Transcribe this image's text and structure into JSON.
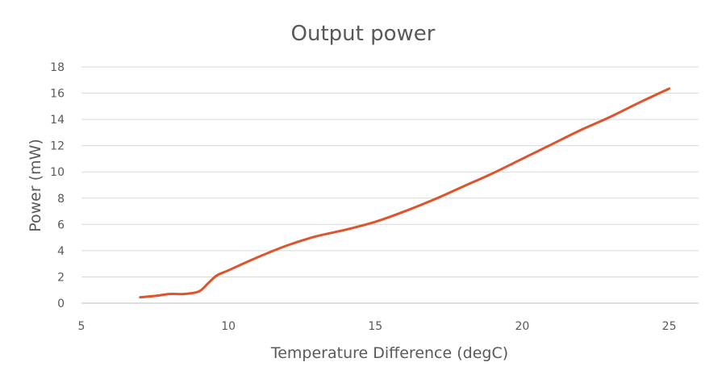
{
  "chart_data": {
    "type": "line",
    "title": "Output power",
    "xlabel": "Temperature Difference (degC)",
    "ylabel": "Power (mW)",
    "xlim": [
      5,
      26
    ],
    "ylim": [
      0,
      18
    ],
    "xticks": [
      5,
      10,
      15,
      20,
      25
    ],
    "yticks": [
      0,
      2,
      4,
      6,
      8,
      10,
      12,
      14,
      16,
      18
    ],
    "grid": true,
    "series": [
      {
        "name": "Output power",
        "color": "#e0522b",
        "x": [
          7.0,
          7.5,
          8.0,
          8.5,
          9.0,
          9.3,
          9.6,
          10.0,
          11.0,
          12.0,
          13.0,
          14.0,
          15.0,
          16.0,
          17.0,
          18.0,
          19.0,
          20.0,
          21.0,
          22.0,
          23.0,
          24.0,
          25.0
        ],
        "y": [
          0.45,
          0.55,
          0.7,
          0.7,
          0.9,
          1.5,
          2.1,
          2.5,
          3.5,
          4.4,
          5.1,
          5.6,
          6.2,
          7.0,
          7.9,
          8.9,
          9.9,
          11.0,
          12.1,
          13.2,
          14.2,
          15.3,
          16.35
        ]
      }
    ]
  }
}
